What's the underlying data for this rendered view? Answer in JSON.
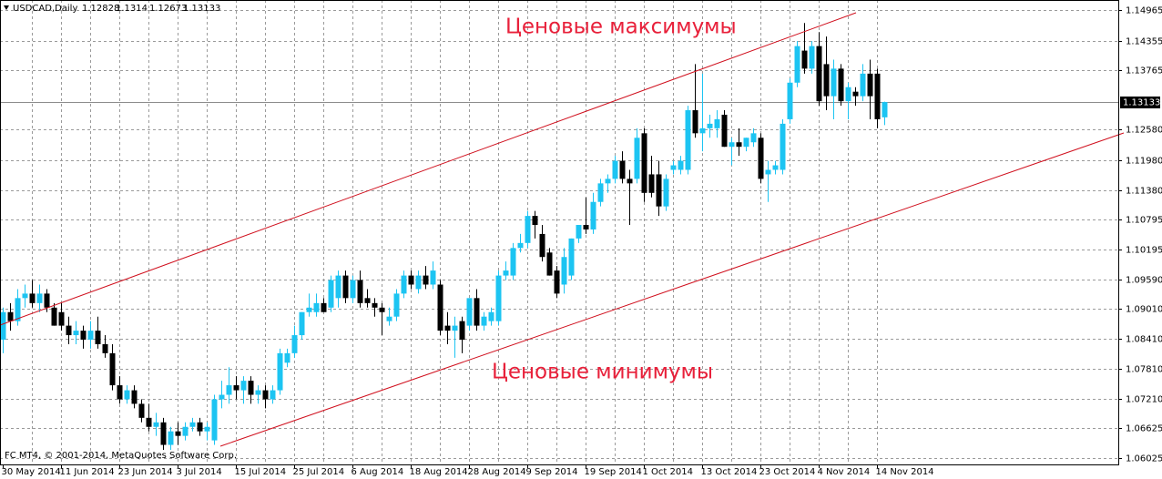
{
  "chart_data": {
    "type": "candlestick",
    "title": "USDCAD,Daily",
    "footer": "FC MT4, © 2001-2014, MetaQuotes Software Corp.",
    "annotations": [
      "Ценовые максимумы",
      "Ценовые минимумы"
    ],
    "up_color": "#1cc4f2",
    "down_color": "#000000",
    "grid": true,
    "ylim": [
      1.059,
      1.1517
    ],
    "yticks": [
      1.14965,
      1.14355,
      1.13765,
      {
        "value": 1.1258,
        "label": "1.12580"
      },
      {
        "value": 1.1198,
        "label": "1.11980"
      },
      {
        "value": 1.1138,
        "label": "1.11380"
      },
      1.10795,
      1.10195,
      {
        "value": 1.0959,
        "label": "1.09590"
      },
      {
        "value": 1.0901,
        "label": "1.09010"
      },
      {
        "value": 1.0841,
        "label": "1.08410"
      },
      {
        "value": 1.0781,
        "label": "1.07810"
      },
      {
        "value": 1.0721,
        "label": "1.07210"
      },
      1.06625,
      1.06025
    ],
    "categories": [
      "30 May 2014",
      null,
      null,
      null,
      null,
      null,
      null,
      null,
      "11 Jun 2014",
      null,
      null,
      null,
      null,
      null,
      null,
      null,
      "23 Jun 2014",
      null,
      null,
      null,
      null,
      null,
      null,
      null,
      "3 Jul 2014",
      null,
      null,
      null,
      null,
      null,
      null,
      null,
      "15 Jul 2014",
      null,
      null,
      null,
      null,
      null,
      null,
      null,
      "25 Jul 2014",
      null,
      null,
      null,
      null,
      null,
      null,
      null,
      "6 Aug 2014",
      null,
      null,
      null,
      null,
      null,
      null,
      null,
      "18 Aug 2014",
      null,
      null,
      null,
      null,
      null,
      null,
      null,
      "28 Aug 2014",
      null,
      null,
      null,
      null,
      null,
      null,
      null,
      "9 Sep 2014",
      null,
      null,
      null,
      null,
      null,
      null,
      null,
      "19 Sep 2014",
      null,
      null,
      null,
      null,
      null,
      null,
      null,
      "1 Oct 2014",
      null,
      null,
      null,
      null,
      null,
      null,
      null,
      "13 Oct 2014",
      null,
      null,
      null,
      null,
      null,
      null,
      null,
      "23 Oct 2014",
      null,
      null,
      null,
      null,
      null,
      null,
      null,
      "4 Nov 2014",
      null,
      null,
      null,
      null,
      null,
      null,
      null,
      "14 Nov 2014",
      null
    ],
    "open": [
      1.0839,
      1.0894,
      1.0876,
      1.0922,
      1.0931,
      1.0912,
      1.0931,
      1.0903,
      1.0894,
      1.0867,
      1.0848,
      1.0857,
      1.0839,
      1.0857,
      1.083,
      1.0812,
      1.0748,
      1.072,
      1.0738,
      1.0711,
      1.0683,
      1.0665,
      1.0674,
      1.0629,
      1.0656,
      1.0647,
      1.0665,
      1.0674,
      1.0656,
      1.0638,
      1.072,
      1.0729,
      1.0748,
      1.0738,
      1.0757,
      1.0729,
      1.0738,
      1.072,
      1.0738,
      1.0793,
      1.0812,
      1.0848,
      1.0894,
      1.0894,
      1.0912,
      1.0903,
      1.0922,
      1.0967,
      1.0922,
      1.0958,
      1.0922,
      1.0912,
      1.0903,
      1.0876,
      1.0885,
      1.0931,
      1.0967,
      1.094,
      1.0967,
      1.0949,
      1.0949,
      1.0867,
      1.0857,
      1.0876,
      1.0867,
      1.0922,
      1.0867,
      1.0876,
      1.0876,
      1.0967,
      1.0967,
      1.1022,
      1.1032,
      1.1086,
      1.105,
      1.1013,
      1.0977,
      1.0949,
      1.0967,
      1.1041,
      1.1068,
      1.1059,
      1.1114,
      1.1151,
      1.116,
      1.1196,
      1.116,
      1.116,
      1.1251,
      1.1169,
      1.1169,
      1.1105,
      1.1178,
      1.1178,
      1.1178,
      1.1297,
      1.1251,
      1.1261,
      1.1261,
      1.1288,
      1.1224,
      1.1233,
      1.1224,
      1.1233,
      1.1242,
      1.1169,
      1.1178,
      1.1178,
      1.1279,
      1.1352,
      1.1416,
      1.138,
      1.1425,
      1.1389,
      1.1325,
      1.138,
      1.1315,
      1.1334,
      1.1325,
      1.137,
      1.137,
      1.12828
    ],
    "high": [
      1.0903,
      1.0912,
      1.094,
      1.0949,
      1.0958,
      1.0949,
      1.094,
      1.0912,
      1.0912,
      1.0885,
      1.0876,
      1.0867,
      1.0876,
      1.0885,
      1.0848,
      1.083,
      1.0766,
      1.0748,
      1.0748,
      1.072,
      1.0711,
      1.0693,
      1.0683,
      1.0665,
      1.0674,
      1.0674,
      1.0683,
      1.0683,
      1.0674,
      1.0729,
      1.0757,
      1.0784,
      1.0766,
      1.0766,
      1.0766,
      1.0748,
      1.0748,
      1.0748,
      1.0821,
      1.0821,
      1.0867,
      1.0894,
      1.0931,
      1.0931,
      1.0922,
      1.0967,
      1.0977,
      1.0977,
      1.0967,
      1.0977,
      1.094,
      1.0922,
      1.0912,
      1.0903,
      1.094,
      1.0977,
      1.0977,
      1.0977,
      1.0986,
      1.0995,
      1.0958,
      1.0894,
      1.0885,
      1.0885,
      1.0922,
      1.094,
      1.0894,
      1.0903,
      1.0977,
      1.0995,
      1.1032,
      1.105,
      1.1096,
      1.1096,
      1.1068,
      1.1022,
      1.0986,
      1.1022,
      1.1041,
      1.1068,
      1.1123,
      1.1132,
      1.116,
      1.1169,
      1.1206,
      1.1215,
      1.1178,
      1.1261,
      1.1261,
      1.1206,
      1.1196,
      1.1169,
      1.1196,
      1.1206,
      1.1306,
      1.1389,
      1.137,
      1.1288,
      1.1297,
      1.1297,
      1.1242,
      1.1261,
      1.1242,
      1.1261,
      1.1251,
      1.1196,
      1.1196,
      1.1279,
      1.1361,
      1.1435,
      1.1471,
      1.1435,
      1.1453,
      1.1444,
      1.1398,
      1.1389,
      1.1352,
      1.1343,
      1.1389,
      1.1398,
      1.138,
      1.1314
    ],
    "low": [
      1.0812,
      1.0857,
      1.0867,
      1.0903,
      1.0903,
      1.0894,
      1.0894,
      1.0867,
      1.0857,
      1.083,
      1.083,
      1.0821,
      1.0821,
      1.0821,
      1.0803,
      1.0738,
      1.0711,
      1.0711,
      1.0702,
      1.0674,
      1.0656,
      1.0647,
      1.0619,
      1.0619,
      1.0629,
      1.0638,
      1.0656,
      1.0647,
      1.0638,
      1.0629,
      1.0702,
      1.0711,
      1.072,
      1.0711,
      1.0711,
      1.0711,
      1.0702,
      1.0711,
      1.0729,
      1.0784,
      1.0803,
      1.0839,
      1.0885,
      1.0885,
      1.0894,
      1.0894,
      1.0903,
      1.0912,
      1.0912,
      1.0903,
      1.0903,
      1.0885,
      1.0848,
      1.0867,
      1.0876,
      1.0922,
      1.094,
      1.0931,
      1.094,
      1.094,
      1.0848,
      1.083,
      1.0803,
      1.0812,
      1.0857,
      1.0857,
      1.0857,
      1.0867,
      1.0867,
      1.0958,
      1.0958,
      1.1013,
      1.1022,
      1.1041,
      1.0995,
      1.0967,
      1.0922,
      1.0931,
      1.0958,
      1.1032,
      1.105,
      1.105,
      1.1105,
      1.1132,
      1.1151,
      1.1151,
      1.1068,
      1.1151,
      1.1114,
      1.1123,
      1.1086,
      1.1096,
      1.1169,
      1.1169,
      1.1169,
      1.1242,
      1.1215,
      1.1242,
      1.1242,
      1.1224,
      1.1187,
      1.1206,
      1.1215,
      1.1224,
      1.1151,
      1.1114,
      1.1169,
      1.1169,
      1.127,
      1.1343,
      1.137,
      1.137,
      1.1306,
      1.1297,
      1.1279,
      1.1306,
      1.1279,
      1.1306,
      1.1315,
      1.1279,
      1.1261,
      1.12673
    ],
    "close": [
      1.0894,
      1.0876,
      1.0922,
      1.0931,
      1.0912,
      1.0931,
      1.0903,
      1.0867,
      1.0867,
      1.0848,
      1.0857,
      1.0839,
      1.0857,
      1.083,
      1.0812,
      1.0748,
      1.072,
      1.0738,
      1.0711,
      1.0683,
      1.0665,
      1.0674,
      1.0629,
      1.0656,
      1.0647,
      1.0665,
      1.0674,
      1.0656,
      1.0665,
      1.072,
      1.0729,
      1.0748,
      1.0738,
      1.0757,
      1.0729,
      1.0738,
      1.072,
      1.0738,
      1.0812,
      1.0812,
      1.0848,
      1.0894,
      1.0903,
      1.0912,
      1.0894,
      1.0958,
      1.0967,
      1.0922,
      1.0958,
      1.0912,
      1.0912,
      1.0903,
      1.0894,
      1.0885,
      1.0931,
      1.0967,
      1.0949,
      1.0967,
      1.0949,
      1.0977,
      1.0857,
      1.0857,
      1.0867,
      1.0839,
      1.0922,
      1.0867,
      1.0885,
      1.0894,
      1.0967,
      1.0977,
      1.1022,
      1.1032,
      1.1086,
      1.1068,
      1.1004,
      1.0967,
      1.0931,
      1.1004,
      1.1041,
      1.1068,
      1.1059,
      1.1114,
      1.1151,
      1.116,
      1.1196,
      1.116,
      1.1151,
      1.1242,
      1.1132,
      1.1132,
      1.1105,
      1.116,
      1.1187,
      1.1196,
      1.1297,
      1.1251,
      1.1261,
      1.127,
      1.1279,
      1.1224,
      1.1233,
      1.1224,
      1.1242,
      1.1251,
      1.116,
      1.1178,
      1.1187,
      1.127,
      1.1352,
      1.1425,
      1.138,
      1.1425,
      1.1315,
      1.1325,
      1.138,
      1.1315,
      1.1343,
      1.1325,
      1.137,
      1.1325,
      1.1279,
      1.13133
    ]
  }
}
